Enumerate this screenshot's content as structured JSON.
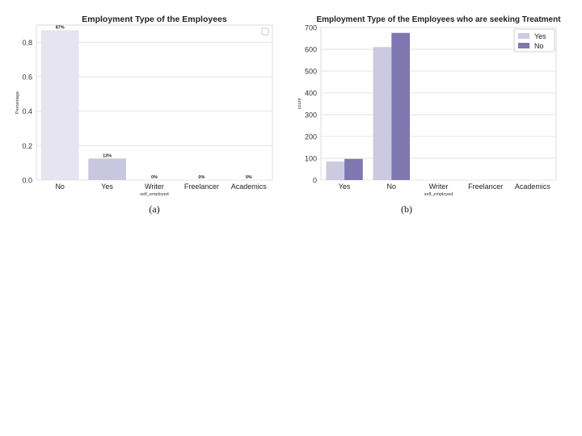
{
  "chart_data": [
    {
      "type": "bar",
      "title": "Employment Type of the Employees",
      "xlabel": "self_employed",
      "ylabel": "Percentage",
      "categories": [
        "No",
        "Yes",
        "Writer",
        "Freelancer",
        "Academics"
      ],
      "values": [
        0.87,
        0.125,
        0,
        0,
        0
      ],
      "data_labels": [
        "87%",
        "13%",
        "0%",
        "0%",
        "0%"
      ],
      "ylim": [
        0,
        0.9
      ],
      "yticks": [
        0.0,
        0.2,
        0.4,
        0.6,
        0.8
      ],
      "ytick_labels": [
        "0.0",
        "0.2",
        "0.4",
        "0.6",
        "0.8"
      ],
      "bar_colors": [
        "#e6e4f0",
        "#c9c7e0",
        "#c9c7e0",
        "#c9c7e0",
        "#c9c7e0"
      ],
      "grid": true,
      "legend": "top-right",
      "caption": "(a)"
    },
    {
      "type": "bar",
      "title": "Employment Type of the Employees who are seeking Treatment",
      "xlabel": "self_employed",
      "ylabel": "count",
      "categories": [
        "Yes",
        "No",
        "Writer",
        "Freelancer",
        "Academics"
      ],
      "series": [
        {
          "name": "Yes",
          "values": [
            85,
            610,
            0,
            0,
            0
          ],
          "color": "#cbcae0"
        },
        {
          "name": "No",
          "values": [
            97,
            675,
            0,
            0,
            0
          ],
          "color": "#7f77b0"
        }
      ],
      "ylim": [
        0,
        700
      ],
      "yticks": [
        0,
        100,
        200,
        300,
        400,
        500,
        600,
        700
      ],
      "ytick_labels": [
        "0",
        "100",
        "200",
        "300",
        "400",
        "500",
        "600",
        "700"
      ],
      "grid": true,
      "legend": "top-right",
      "caption": "(b)"
    }
  ]
}
